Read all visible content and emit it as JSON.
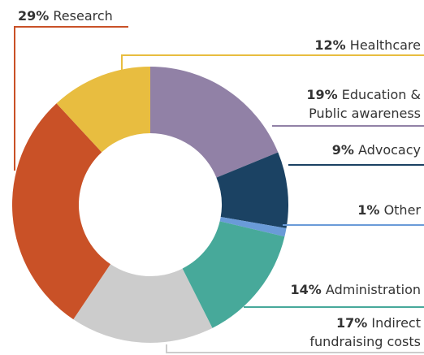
{
  "chart_data": {
    "type": "donut",
    "categories": [
      "Education & Public awareness",
      "Advocacy",
      "Other",
      "Administration",
      "Indirect fundraising costs",
      "Research",
      "Healthcare"
    ],
    "values": [
      19,
      9,
      1,
      14,
      17,
      29,
      12
    ],
    "value_labels": [
      "19%",
      "9%",
      "1%",
      "14%",
      "17%",
      "29%",
      "12%"
    ],
    "colors": [
      "#9181a6",
      "#1b4263",
      "#6a9bd8",
      "#47a99a",
      "#cccccc",
      "#c95127",
      "#e8bd40"
    ]
  }
}
